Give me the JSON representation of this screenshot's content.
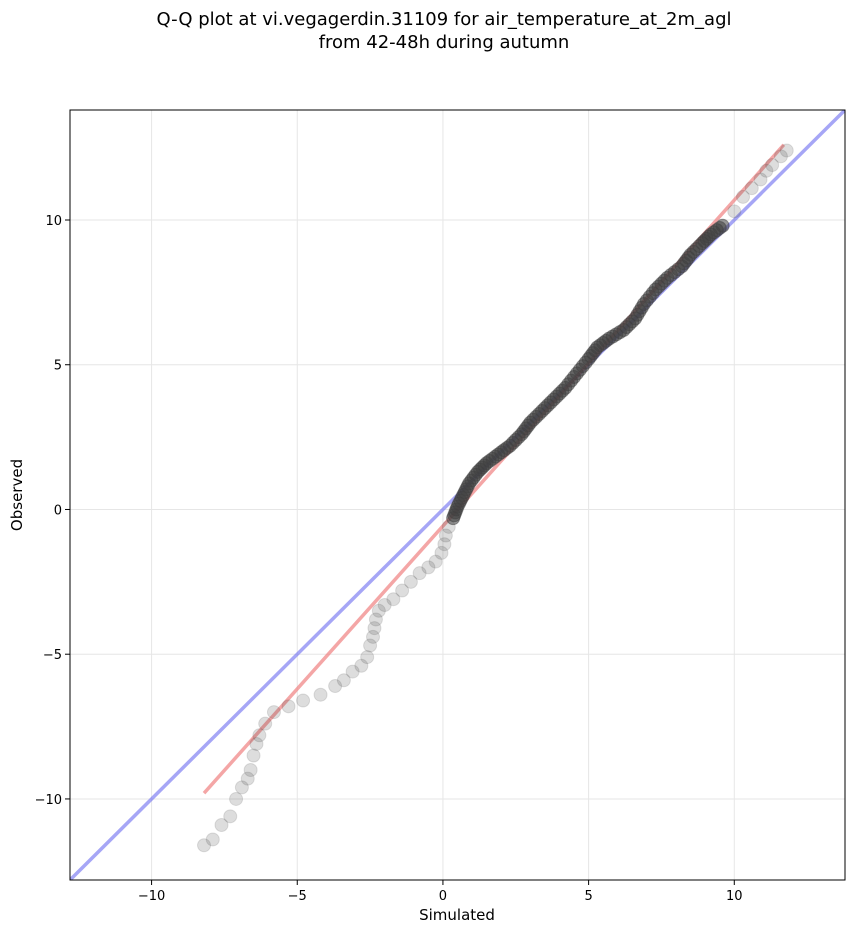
{
  "chart_data": {
    "type": "scatter",
    "title_lines": [
      "Q-Q plot at vi.vegagerdin.31109 for air_temperature_at_2m_agl",
      "from 42-48h during autumn"
    ],
    "xlabel": "Simulated",
    "ylabel": "Observed",
    "xlim": [
      -12.8,
      13.8
    ],
    "ylim": [
      -12.8,
      13.8
    ],
    "xticks": [
      -10,
      -5,
      0,
      5,
      10
    ],
    "yticks": [
      -10,
      -5,
      0,
      5,
      10
    ],
    "xtick_labels": [
      "−10",
      "−5",
      "0",
      "5",
      "10"
    ],
    "ytick_labels": [
      "−10",
      "−5",
      "0",
      "5",
      "10"
    ],
    "grid": true,
    "series": [
      {
        "kind": "points",
        "color": "#404040",
        "points": [
          [
            -8.2,
            -11.6
          ],
          [
            -7.9,
            -11.4
          ],
          [
            -7.6,
            -10.9
          ],
          [
            -7.3,
            -10.6
          ],
          [
            -7.1,
            -10.0
          ],
          [
            -6.9,
            -9.6
          ],
          [
            -6.7,
            -9.3
          ],
          [
            -6.6,
            -9.0
          ],
          [
            -6.5,
            -8.5
          ],
          [
            -6.4,
            -8.1
          ],
          [
            -6.3,
            -7.8
          ],
          [
            -6.1,
            -7.4
          ],
          [
            -5.8,
            -7.0
          ],
          [
            -5.3,
            -6.8
          ],
          [
            -4.8,
            -6.6
          ],
          [
            -4.2,
            -6.4
          ],
          [
            -3.7,
            -6.1
          ],
          [
            -3.4,
            -5.9
          ],
          [
            -3.1,
            -5.6
          ],
          [
            -2.8,
            -5.4
          ],
          [
            -2.6,
            -5.1
          ],
          [
            -2.5,
            -4.7
          ],
          [
            -2.4,
            -4.4
          ],
          [
            -2.35,
            -4.1
          ],
          [
            -2.3,
            -3.8
          ],
          [
            -2.2,
            -3.5
          ],
          [
            -2.0,
            -3.3
          ],
          [
            -1.7,
            -3.1
          ],
          [
            -1.4,
            -2.8
          ],
          [
            -1.1,
            -2.5
          ],
          [
            -0.8,
            -2.2
          ],
          [
            -0.5,
            -2.0
          ],
          [
            -0.25,
            -1.8
          ],
          [
            -0.05,
            -1.5
          ],
          [
            0.05,
            -1.2
          ],
          [
            0.1,
            -0.9
          ],
          [
            0.2,
            -0.6
          ],
          [
            0.35,
            -0.3
          ],
          [
            0.5,
            0.1
          ],
          [
            0.7,
            0.5
          ],
          [
            0.9,
            0.9
          ],
          [
            1.2,
            1.3
          ],
          [
            1.5,
            1.6
          ],
          [
            1.9,
            1.9
          ],
          [
            2.3,
            2.2
          ],
          [
            2.7,
            2.6
          ],
          [
            3.0,
            3.0
          ],
          [
            3.4,
            3.4
          ],
          [
            3.8,
            3.8
          ],
          [
            4.2,
            4.2
          ],
          [
            4.6,
            4.7
          ],
          [
            5.0,
            5.2
          ],
          [
            5.3,
            5.6
          ],
          [
            5.7,
            5.9
          ],
          [
            6.2,
            6.2
          ],
          [
            6.6,
            6.6
          ],
          [
            6.9,
            7.1
          ],
          [
            7.3,
            7.6
          ],
          [
            7.7,
            8.0
          ],
          [
            8.2,
            8.4
          ],
          [
            8.5,
            8.8
          ],
          [
            8.9,
            9.2
          ],
          [
            9.2,
            9.5
          ],
          [
            9.6,
            9.8
          ],
          [
            10.0,
            10.3
          ],
          [
            10.3,
            10.8
          ],
          [
            10.6,
            11.1
          ],
          [
            10.9,
            11.4
          ],
          [
            11.1,
            11.7
          ],
          [
            11.3,
            11.9
          ],
          [
            11.6,
            12.2
          ],
          [
            11.8,
            12.4
          ]
        ]
      },
      {
        "kind": "reference-line",
        "color": "#6a6af0",
        "description": "y = x"
      },
      {
        "kind": "fit-line",
        "color": "#f08080",
        "from": [
          -8.2,
          -9.8
        ],
        "to": [
          11.7,
          12.6
        ]
      }
    ]
  }
}
